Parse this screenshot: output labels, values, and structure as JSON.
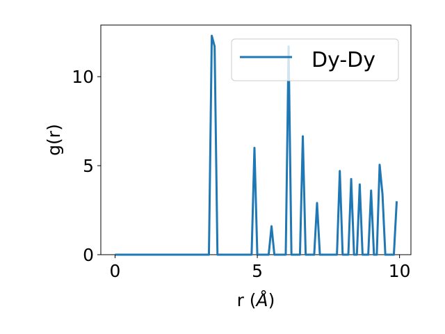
{
  "chart_data": {
    "type": "line",
    "xlabel_prefix": "r (",
    "xlabel_unit": "Å",
    "xlabel_suffix": ")",
    "ylabel": "g(r)",
    "xlim": [
      -0.5,
      10.4
    ],
    "ylim": [
      0,
      12.9
    ],
    "xticks": [
      0,
      5,
      10
    ],
    "xtick_labels": [
      "0",
      "5",
      "10"
    ],
    "yticks": [
      0,
      5,
      10
    ],
    "ytick_labels": [
      "0",
      "5",
      "10"
    ],
    "grid": false,
    "legend_placement": "top-right",
    "series": [
      {
        "name": "Dy-Dy",
        "color": "#1f77b4",
        "x": [
          0.0,
          0.1,
          0.2,
          0.3,
          0.4,
          0.5,
          0.6,
          0.7,
          0.8,
          0.9,
          1.0,
          1.1,
          1.2,
          1.3,
          1.4,
          1.5,
          1.6,
          1.7,
          1.8,
          1.9,
          2.0,
          2.1,
          2.2,
          2.3,
          2.4,
          2.5,
          2.6,
          2.7,
          2.8,
          2.9,
          3.0,
          3.1,
          3.2,
          3.3,
          3.4,
          3.5,
          3.6,
          3.7,
          3.8,
          3.9,
          4.0,
          4.1,
          4.2,
          4.3,
          4.4,
          4.5,
          4.6,
          4.7,
          4.8,
          4.9,
          5.0,
          5.1,
          5.2,
          5.3,
          5.4,
          5.5,
          5.6,
          5.7,
          5.8,
          5.9,
          6.0,
          6.1,
          6.2,
          6.3,
          6.4,
          6.5,
          6.6,
          6.7,
          6.8,
          6.9,
          7.0,
          7.1,
          7.2,
          7.3,
          7.4,
          7.5,
          7.6,
          7.7,
          7.8,
          7.9,
          8.0,
          8.1,
          8.2,
          8.3,
          8.4,
          8.5,
          8.6,
          8.7,
          8.8,
          8.9,
          9.0,
          9.1,
          9.2,
          9.3,
          9.4,
          9.5,
          9.6,
          9.7,
          9.8,
          9.9
        ],
        "y": [
          0,
          0,
          0,
          0,
          0,
          0,
          0,
          0,
          0,
          0,
          0,
          0,
          0,
          0,
          0,
          0,
          0,
          0,
          0,
          0,
          0,
          0,
          0,
          0,
          0,
          0,
          0,
          0,
          0,
          0,
          0,
          0,
          0,
          0,
          12.3,
          11.7,
          0,
          0,
          0,
          0,
          0,
          0,
          0,
          0,
          0,
          0,
          0,
          0,
          0,
          6.0,
          0,
          0,
          0,
          0,
          0,
          1.6,
          0,
          0,
          0,
          0,
          0,
          11.7,
          0,
          0,
          0,
          0,
          6.65,
          0,
          0,
          0,
          0,
          2.9,
          0,
          0,
          0,
          0,
          0,
          0,
          0,
          4.7,
          0,
          0,
          0,
          4.25,
          0,
          0,
          3.95,
          0,
          0,
          0,
          3.6,
          0,
          0,
          5.05,
          3.4,
          0,
          0,
          0,
          0,
          3.0
        ]
      }
    ]
  }
}
